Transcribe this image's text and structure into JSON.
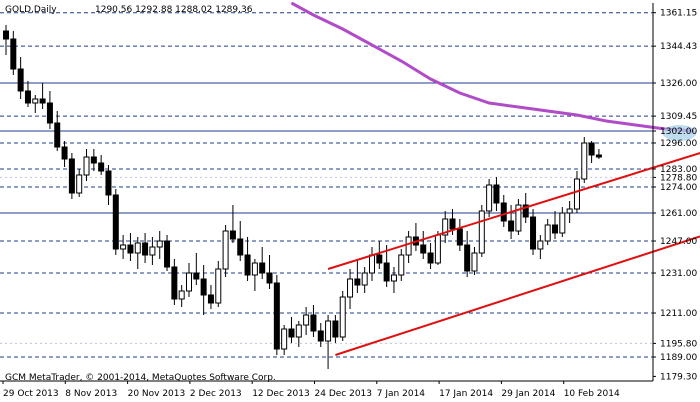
{
  "chart_data": {
    "type": "candlestick",
    "symbol_line": "GOLD,Daily",
    "ohlc_readout": "1290.56 1292.88 1288.02 1289.36",
    "footer": "GCM MetaTrader, © 2001-2014, MetaQuotes Software Corp.",
    "price_labels": [
      "1361.15",
      "1344.43",
      "1326.00",
      "1309.45",
      "1302.00",
      "1296.00",
      "1283.00",
      "1278.80",
      "1274.00",
      "1261.00",
      "1247.00",
      "1231.00",
      "1211.00",
      "1195.80",
      "1189.00",
      "1179.30"
    ],
    "current_price": "1289.36",
    "dashed_levels": [
      1361.15,
      1344.43,
      1309.45,
      1296.0,
      1283.0,
      1274.0,
      1247.0,
      1231.0,
      1211.0,
      1189.0
    ],
    "solid_levels": [
      1326.0,
      1302.0,
      1261.0
    ],
    "faint_levels": [
      1278.8,
      1195.8
    ],
    "date_labels": [
      "29 Oct 2013",
      "8 Nov 2013",
      "20 Nov 2013",
      "2 Dec 2013",
      "12 Dec 2013",
      "24 Dec 2013",
      "7 Jan 2014",
      "17 Jan 2014",
      "29 Jan 2014",
      "10 Feb 2014"
    ],
    "y_range": [
      1177,
      1366
    ],
    "channel": {
      "upper_start": [
        44,
        1233
      ],
      "upper_end": [
        108,
        1306
      ],
      "lower_start": [
        45,
        1190
      ],
      "lower_end": [
        108,
        1265
      ]
    },
    "moving_average": [
      [
        39,
        1366
      ],
      [
        42,
        1360
      ],
      [
        46,
        1353
      ],
      [
        50,
        1345
      ],
      [
        54,
        1337
      ],
      [
        58,
        1328
      ],
      [
        62,
        1321
      ],
      [
        66,
        1316
      ],
      [
        70,
        1314
      ],
      [
        74,
        1312
      ],
      [
        78,
        1310
      ],
      [
        82,
        1307
      ],
      [
        86,
        1305
      ],
      [
        90,
        1303
      ],
      [
        94,
        1302
      ]
    ],
    "highlights": [
      [
        92,
        1301
      ],
      [
        99,
        1260
      ]
    ],
    "candles": [
      [
        0,
        1352,
        1355,
        1340,
        1348
      ],
      [
        1,
        1348,
        1352,
        1330,
        1333
      ],
      [
        2,
        1333,
        1339,
        1318,
        1322
      ],
      [
        3,
        1322,
        1327,
        1314,
        1316
      ],
      [
        4,
        1316,
        1320,
        1311,
        1318
      ],
      [
        5,
        1318,
        1326,
        1313,
        1316
      ],
      [
        6,
        1316,
        1322,
        1303,
        1306
      ],
      [
        7,
        1306,
        1312,
        1292,
        1294
      ],
      [
        8,
        1294,
        1297,
        1284,
        1288
      ],
      [
        9,
        1288,
        1291,
        1268,
        1271
      ],
      [
        10,
        1271,
        1283,
        1269,
        1280
      ],
      [
        11,
        1280,
        1293,
        1277,
        1289
      ],
      [
        12,
        1289,
        1293,
        1282,
        1286
      ],
      [
        13,
        1286,
        1290,
        1280,
        1282
      ],
      [
        14,
        1282,
        1285,
        1265,
        1270
      ],
      [
        15,
        1270,
        1273,
        1240,
        1243
      ],
      [
        16,
        1243,
        1250,
        1238,
        1245
      ],
      [
        17,
        1245,
        1251,
        1237,
        1241
      ],
      [
        18,
        1241,
        1249,
        1233,
        1246
      ],
      [
        19,
        1246,
        1251,
        1236,
        1240
      ],
      [
        20,
        1240,
        1249,
        1235,
        1244
      ],
      [
        21,
        1244,
        1252,
        1238,
        1247
      ],
      [
        22,
        1247,
        1250,
        1232,
        1234
      ],
      [
        23,
        1234,
        1238,
        1215,
        1218
      ],
      [
        24,
        1218,
        1225,
        1214,
        1222
      ],
      [
        25,
        1222,
        1236,
        1219,
        1231
      ],
      [
        26,
        1231,
        1241,
        1225,
        1228
      ],
      [
        27,
        1228,
        1235,
        1210,
        1220
      ],
      [
        28,
        1220,
        1225,
        1213,
        1216
      ],
      [
        29,
        1216,
        1237,
        1214,
        1233
      ],
      [
        30,
        1233,
        1255,
        1229,
        1252
      ],
      [
        31,
        1252,
        1265,
        1246,
        1248
      ],
      [
        32,
        1248,
        1257,
        1237,
        1240
      ],
      [
        33,
        1240,
        1249,
        1227,
        1230
      ],
      [
        34,
        1230,
        1238,
        1222,
        1236
      ],
      [
        35,
        1236,
        1244,
        1228,
        1231
      ],
      [
        36,
        1231,
        1240,
        1223,
        1226
      ],
      [
        37,
        1226,
        1230,
        1190,
        1193
      ],
      [
        38,
        1193,
        1205,
        1190,
        1203
      ],
      [
        39,
        1203,
        1209,
        1196,
        1199
      ],
      [
        40,
        1199,
        1207,
        1194,
        1205
      ],
      [
        41,
        1205,
        1214,
        1200,
        1210
      ],
      [
        42,
        1210,
        1215,
        1199,
        1202
      ],
      [
        43,
        1202,
        1206,
        1194,
        1197
      ],
      [
        44,
        1197,
        1210,
        1183,
        1207
      ],
      [
        45,
        1207,
        1210,
        1196,
        1199
      ],
      [
        46,
        1199,
        1222,
        1197,
        1219
      ],
      [
        47,
        1219,
        1233,
        1213,
        1228
      ],
      [
        48,
        1228,
        1238,
        1221,
        1225
      ],
      [
        49,
        1225,
        1234,
        1221,
        1231
      ],
      [
        50,
        1231,
        1244,
        1227,
        1240
      ],
      [
        51,
        1240,
        1247,
        1233,
        1236
      ],
      [
        52,
        1236,
        1245,
        1224,
        1227
      ],
      [
        53,
        1227,
        1234,
        1221,
        1230
      ],
      [
        54,
        1230,
        1243,
        1227,
        1240
      ],
      [
        55,
        1240,
        1252,
        1236,
        1249
      ],
      [
        56,
        1249,
        1256,
        1242,
        1245
      ],
      [
        57,
        1245,
        1252,
        1238,
        1241
      ],
      [
        58,
        1241,
        1246,
        1233,
        1236
      ],
      [
        59,
        1236,
        1252,
        1235,
        1250
      ],
      [
        60,
        1250,
        1262,
        1246,
        1258
      ],
      [
        61,
        1258,
        1263,
        1250,
        1253
      ],
      [
        62,
        1253,
        1258,
        1242,
        1245
      ],
      [
        63,
        1245,
        1252,
        1229,
        1232
      ],
      [
        64,
        1232,
        1244,
        1230,
        1241
      ],
      [
        65,
        1241,
        1265,
        1239,
        1262
      ],
      [
        66,
        1262,
        1278,
        1259,
        1275
      ],
      [
        67,
        1275,
        1279,
        1262,
        1266
      ],
      [
        68,
        1266,
        1270,
        1254,
        1257
      ],
      [
        69,
        1257,
        1265,
        1248,
        1252
      ],
      [
        70,
        1252,
        1268,
        1250,
        1265
      ],
      [
        71,
        1265,
        1271,
        1256,
        1259
      ],
      [
        72,
        1259,
        1263,
        1240,
        1243
      ],
      [
        73,
        1243,
        1250,
        1238,
        1247
      ],
      [
        74,
        1247,
        1258,
        1245,
        1255
      ],
      [
        75,
        1255,
        1262,
        1248,
        1251
      ],
      [
        76,
        1251,
        1264,
        1249,
        1261
      ],
      [
        77,
        1261,
        1267,
        1256,
        1263
      ],
      [
        78,
        1263,
        1282,
        1261,
        1278
      ],
      [
        79,
        1278,
        1299,
        1276,
        1296
      ],
      [
        80,
        1296,
        1297,
        1286,
        1290
      ],
      [
        81,
        1290,
        1293,
        1288,
        1289
      ]
    ]
  }
}
